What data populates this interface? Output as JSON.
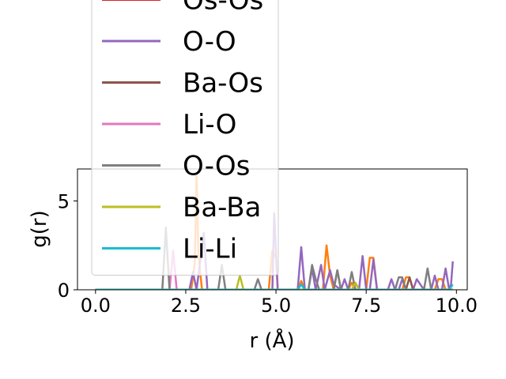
{
  "chart_data": {
    "type": "line",
    "title": "",
    "xlabel": "r (Å)",
    "ylabel": "g(r)",
    "xlim": [
      -0.5,
      10.3
    ],
    "ylim": [
      0,
      6.8
    ],
    "xticks": [
      0.0,
      2.5,
      5.0,
      7.5,
      10.0
    ],
    "xtick_labels": [
      "0.0",
      "2.5",
      "5.0",
      "7.5",
      "10.0"
    ],
    "yticks": [
      0,
      5
    ],
    "ytick_labels": [
      "0",
      "5"
    ],
    "grid": false,
    "legend_placement": "upper-left, overflowing above the axes",
    "series": [
      {
        "name": "",
        "color": "#1f77b4",
        "points": [
          [
            0,
            0
          ],
          [
            9.9,
            0
          ]
        ]
      },
      {
        "name": "",
        "color": "#ff7f0e",
        "points": [
          [
            0,
            0
          ],
          [
            2.65,
            0
          ],
          [
            2.75,
            1.5
          ],
          [
            2.8,
            6.6
          ],
          [
            2.85,
            2.0
          ],
          [
            2.95,
            0
          ],
          [
            4.8,
            0
          ],
          [
            4.9,
            2.2
          ],
          [
            5.0,
            1.8
          ],
          [
            5.05,
            0
          ],
          [
            5.6,
            0
          ],
          [
            5.7,
            0.5
          ],
          [
            5.8,
            0
          ],
          [
            6.3,
            0
          ],
          [
            6.4,
            2.5
          ],
          [
            6.5,
            0.8
          ],
          [
            6.6,
            0
          ],
          [
            7.0,
            0
          ],
          [
            7.1,
            0.4
          ],
          [
            7.2,
            0
          ],
          [
            7.5,
            0
          ],
          [
            7.6,
            1.8
          ],
          [
            7.7,
            1.8
          ],
          [
            7.8,
            0
          ],
          [
            8.5,
            0
          ],
          [
            8.6,
            0.7
          ],
          [
            8.7,
            0.7
          ],
          [
            8.8,
            0
          ],
          [
            9.4,
            0
          ],
          [
            9.5,
            0.6
          ],
          [
            9.6,
            0.6
          ],
          [
            9.7,
            0
          ],
          [
            9.9,
            0
          ]
        ]
      },
      {
        "name": "",
        "color": "#2ca02c",
        "points": [
          [
            0,
            0
          ],
          [
            9.9,
            0
          ]
        ]
      },
      {
        "name": "Os-Os",
        "color": "#d62728",
        "points": [
          [
            0,
            0
          ],
          [
            9.9,
            0
          ]
        ]
      },
      {
        "name": "O-O",
        "color": "#9467bd",
        "points": [
          [
            0,
            0
          ],
          [
            2.6,
            0
          ],
          [
            2.7,
            1.0
          ],
          [
            2.8,
            0
          ],
          [
            2.9,
            1.6
          ],
          [
            3.0,
            3.2
          ],
          [
            3.1,
            0
          ],
          [
            4.9,
            0
          ],
          [
            4.95,
            4.3
          ],
          [
            5.05,
            0
          ],
          [
            5.6,
            0
          ],
          [
            5.7,
            2.4
          ],
          [
            5.8,
            0
          ],
          [
            5.9,
            0
          ],
          [
            6.0,
            1.2
          ],
          [
            6.1,
            0
          ],
          [
            6.25,
            1.4
          ],
          [
            6.35,
            0
          ],
          [
            6.5,
            1.1
          ],
          [
            6.6,
            0.3
          ],
          [
            6.8,
            0
          ],
          [
            6.9,
            0.6
          ],
          [
            7.0,
            0
          ],
          [
            7.3,
            0
          ],
          [
            7.4,
            1.9
          ],
          [
            7.5,
            0
          ],
          [
            7.6,
            0
          ],
          [
            7.7,
            1.7
          ],
          [
            7.8,
            0
          ],
          [
            8.1,
            0
          ],
          [
            8.2,
            0.6
          ],
          [
            8.3,
            0
          ],
          [
            8.4,
            0
          ],
          [
            8.5,
            0.6
          ],
          [
            8.6,
            0
          ],
          [
            8.8,
            0
          ],
          [
            8.9,
            0.6
          ],
          [
            9.0,
            0.3
          ],
          [
            9.1,
            0
          ],
          [
            9.3,
            0
          ],
          [
            9.4,
            0.8
          ],
          [
            9.5,
            0
          ],
          [
            9.6,
            0
          ],
          [
            9.7,
            1.2
          ],
          [
            9.8,
            0
          ],
          [
            9.85,
            0.3
          ],
          [
            9.9,
            1.6
          ]
        ]
      },
      {
        "name": "Ba-Os",
        "color": "#8c564b",
        "points": [
          [
            0,
            0
          ],
          [
            6.6,
            0
          ],
          [
            6.7,
            1.1
          ],
          [
            6.8,
            0
          ],
          [
            8.6,
            0
          ],
          [
            8.7,
            0.7
          ],
          [
            8.8,
            0
          ],
          [
            9.9,
            0
          ]
        ]
      },
      {
        "name": "Li-O",
        "color": "#e377c2",
        "points": [
          [
            0,
            0
          ],
          [
            2.05,
            0
          ],
          [
            2.15,
            2.2
          ],
          [
            2.25,
            0
          ],
          [
            9.9,
            0
          ]
        ]
      },
      {
        "name": "O-Os",
        "color": "#7f7f7f",
        "points": [
          [
            0,
            0
          ],
          [
            1.85,
            0
          ],
          [
            1.95,
            3.5
          ],
          [
            2.05,
            0
          ],
          [
            3.4,
            0
          ],
          [
            3.5,
            1.4
          ],
          [
            3.6,
            0
          ],
          [
            4.4,
            0
          ],
          [
            4.5,
            0.6
          ],
          [
            4.6,
            0
          ],
          [
            5.9,
            0
          ],
          [
            6.0,
            1.4
          ],
          [
            6.1,
            0.6
          ],
          [
            6.2,
            0
          ],
          [
            6.6,
            0
          ],
          [
            6.7,
            1.1
          ],
          [
            6.8,
            0
          ],
          [
            7.0,
            0
          ],
          [
            7.1,
            1.0
          ],
          [
            7.2,
            0
          ],
          [
            8.3,
            0
          ],
          [
            8.4,
            0.7
          ],
          [
            8.5,
            0.7
          ],
          [
            8.6,
            0
          ],
          [
            9.1,
            0
          ],
          [
            9.2,
            1.2
          ],
          [
            9.3,
            0
          ],
          [
            9.9,
            0
          ]
        ]
      },
      {
        "name": "Ba-Ba",
        "color": "#bcbd22",
        "points": [
          [
            0,
            0
          ],
          [
            3.9,
            0
          ],
          [
            4.0,
            0.8
          ],
          [
            4.1,
            0
          ],
          [
            7.1,
            0
          ],
          [
            7.2,
            0.4
          ],
          [
            7.3,
            0
          ],
          [
            9.9,
            0
          ]
        ]
      },
      {
        "name": "Li-Li",
        "color": "#17becf",
        "points": [
          [
            0,
            0
          ],
          [
            5.6,
            0
          ],
          [
            5.7,
            0.3
          ],
          [
            5.8,
            0
          ],
          [
            9.8,
            0
          ],
          [
            9.9,
            0.3
          ]
        ]
      }
    ]
  }
}
